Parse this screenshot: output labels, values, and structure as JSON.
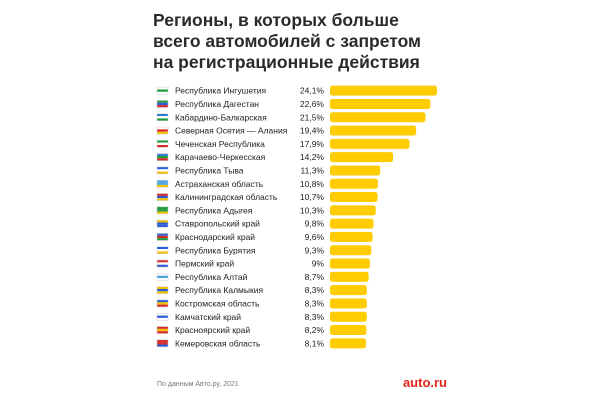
{
  "title_lines": [
    "Регионы, в которых больше",
    "всего автомобилей с запретом",
    "на регистрационные действия"
  ],
  "footer": {
    "source": "По данным Авто.ру, 2021",
    "logo": "auto.ru"
  },
  "colors": {
    "bar": "#FFCC00",
    "text": "#222222"
  },
  "chart_data": {
    "type": "bar",
    "orientation": "horizontal",
    "title": "Регионы, в которых больше всего автомобилей с запретом на регистрационные действия",
    "categories": [
      "Республика Ингушетия",
      "Республика Дагестан",
      "Кабардино-Балкарская",
      "Северная Осетия — Алания",
      "Чеченская Республика",
      "Карачаево-Черкесская",
      "Республика Тыва",
      "Астраханская область",
      "Калининградская область",
      "Республика Адыгея",
      "Ставропольский край",
      "Краснодарский край",
      "Республика Бурятия",
      "Пермский край",
      "Республика Алтай",
      "Республика Калмыкия",
      "Костромская область",
      "Камчатский край",
      "Красноярский край",
      "Кемеровская область"
    ],
    "values": [
      24.1,
      22.6,
      21.5,
      19.4,
      17.9,
      14.2,
      11.3,
      10.8,
      10.7,
      10.3,
      9.8,
      9.6,
      9.3,
      9,
      8.7,
      8.3,
      8.3,
      8.3,
      8.2,
      8.1
    ],
    "value_labels": [
      "24,1%",
      "22,6%",
      "21,5%",
      "19,4%",
      "17,9%",
      "14,2%",
      "11,3%",
      "10,8%",
      "10,7%",
      "10,3%",
      "9,8%",
      "9,6%",
      "9,3%",
      "9%",
      "8,7%",
      "8,3%",
      "8,3%",
      "8,3%",
      "8,2%",
      "8,1%"
    ],
    "flag_icons": [
      "flag-ingushetia-icon",
      "flag-dagestan-icon",
      "flag-kabardino-balkaria-icon",
      "flag-north-ossetia-icon",
      "flag-chechnya-icon",
      "flag-karachay-cherkessia-icon",
      "flag-tuva-icon",
      "flag-astrakhan-icon",
      "flag-kaliningrad-icon",
      "flag-adygea-icon",
      "flag-stavropol-icon",
      "flag-krasnodar-icon",
      "flag-buryatia-icon",
      "flag-perm-icon",
      "flag-altai-icon",
      "flag-kalmykia-icon",
      "flag-kostroma-icon",
      "flag-kamchatka-icon",
      "flag-krasnoyarsk-icon",
      "flag-kemerovo-icon"
    ],
    "flag_stripes": [
      [
        "#ffffff",
        "#1e9a3c",
        "#ffffff"
      ],
      [
        "#1e9a3c",
        "#2a5bd7",
        "#d62828"
      ],
      [
        "#2a7bd4",
        "#ffffff",
        "#1e9a3c"
      ],
      [
        "#ffffff",
        "#d62828",
        "#f2c200"
      ],
      [
        "#1e9a3c",
        "#ffffff",
        "#d62828"
      ],
      [
        "#2a7bd4",
        "#1e9a3c",
        "#d62828"
      ],
      [
        "#2a5bd7",
        "#ffffff",
        "#f2c200"
      ],
      [
        "#4fa3e0",
        "#4fa3e0",
        "#f2c200"
      ],
      [
        "#d62828",
        "#2a5bd7",
        "#f2c200"
      ],
      [
        "#1e9a3c",
        "#1e9a3c",
        "#f2c200"
      ],
      [
        "#f2c200",
        "#2a5bd7",
        "#2a5bd7"
      ],
      [
        "#2a5bd7",
        "#d62828",
        "#1e9a3c"
      ],
      [
        "#2a5bd7",
        "#ffffff",
        "#f2c200"
      ],
      [
        "#d62828",
        "#ffffff",
        "#2a5bd7"
      ],
      [
        "#ffffff",
        "#4fa3e0",
        "#ffffff"
      ],
      [
        "#f2c200",
        "#2a5bd7",
        "#f2c200"
      ],
      [
        "#2a5bd7",
        "#f2c200",
        "#d62828"
      ],
      [
        "#ffffff",
        "#2a5bd7",
        "#ffffff"
      ],
      [
        "#d62828",
        "#f2c200",
        "#d62828"
      ],
      [
        "#d62828",
        "#d62828",
        "#2a5bd7"
      ]
    ],
    "xlim": [
      0,
      24.1
    ],
    "grid": false,
    "legend": "none"
  }
}
